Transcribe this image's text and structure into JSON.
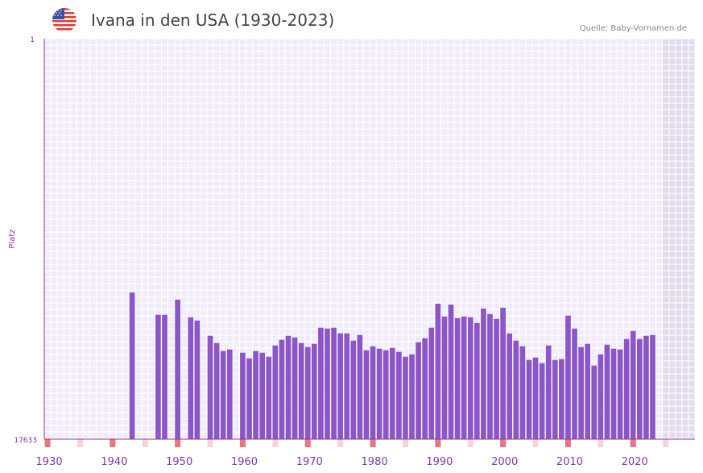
{
  "header": {
    "title": "Ivana in den USA (1930-2023)",
    "source": "Quelle: Baby-Vornamen.de",
    "flag_icon": "us-flag-icon"
  },
  "chart_data": {
    "type": "bar",
    "title": "Ivana in den USA (1930-2023)",
    "ylabel": "Platz",
    "xlabel": "",
    "y_axis_inverted": true,
    "ylim": [
      1,
      17633
    ],
    "y_tick_labels": [
      "1",
      "17633"
    ],
    "xlim": [
      1929,
      2029
    ],
    "x_ticks": [
      1930,
      1940,
      1950,
      1960,
      1970,
      1980,
      1990,
      2000,
      2010,
      2020
    ],
    "x_tick_labels": [
      "1930",
      "1940",
      "1950",
      "1960",
      "1970",
      "1980",
      "1990",
      "2000",
      "2010",
      "2020"
    ],
    "shaded_future_from": 2023,
    "series": [
      {
        "name": "Platz",
        "x": [
          1942,
          1946,
          1947,
          1949,
          1951,
          1952,
          1954,
          1955,
          1956,
          1957,
          1959,
          1960,
          1961,
          1962,
          1963,
          1964,
          1965,
          1966,
          1967,
          1968,
          1969,
          1970,
          1971,
          1972,
          1973,
          1974,
          1975,
          1976,
          1977,
          1978,
          1979,
          1980,
          1981,
          1982,
          1983,
          1984,
          1985,
          1986,
          1987,
          1988,
          1989,
          1990,
          1991,
          1992,
          1993,
          1994,
          1995,
          1996,
          1997,
          1998,
          1999,
          2000,
          2001,
          2002,
          2003,
          2004,
          2005,
          2006,
          2007,
          2008,
          2009,
          2010,
          2011,
          2012,
          2013,
          2014,
          2015,
          2016,
          2017,
          2018,
          2019,
          2020,
          2021,
          2022
        ],
        "values": [
          11175,
          12161,
          12161,
          11493,
          12267,
          12409,
          13083,
          13401,
          13755,
          13684,
          13826,
          14075,
          13755,
          13826,
          14004,
          13507,
          13260,
          13083,
          13154,
          13402,
          13578,
          13437,
          12728,
          12764,
          12728,
          12976,
          12976,
          13295,
          13047,
          13720,
          13543,
          13649,
          13720,
          13614,
          13791,
          14004,
          13898,
          13366,
          13189,
          12728,
          11670,
          12232,
          11706,
          12303,
          12232,
          12267,
          12516,
          11883,
          12126,
          12338,
          11848,
          12976,
          13295,
          13543,
          14146,
          14040,
          14287,
          13507,
          14146,
          14110,
          12196,
          12764,
          13578,
          13437,
          14394,
          13898,
          13472,
          13649,
          13684,
          13224,
          12870,
          13224,
          13083,
          13047
        ]
      }
    ],
    "bar_color": "#8b56c7",
    "plot_background": "#f1ecfa",
    "future_background": "#e2ddec",
    "axis_color": "#8b3a8b",
    "tick_label_color": "#7a3aa8",
    "decade_marker_color": "#e8757f",
    "midyear_marker_color": "#f4d4dc"
  }
}
